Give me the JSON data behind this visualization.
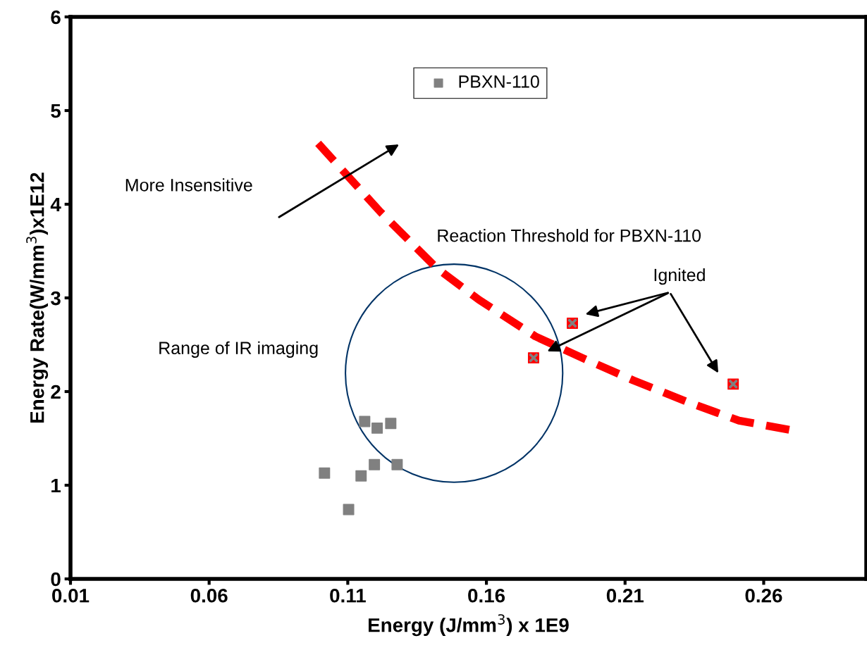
{
  "chart_data": {
    "type": "scatter",
    "xlabel": "Energy (J/mm$^{3}$) x 1E9",
    "ylabel": "Energy Rate(W/mm$^{3}$)x1E12",
    "xlim": [
      0.01,
      0.297
    ],
    "ylim": [
      0,
      6
    ],
    "xticks": [
      0.01,
      0.06,
      0.11,
      0.16,
      0.21,
      0.26
    ],
    "yticks": [
      0,
      1,
      2,
      3,
      4,
      5,
      6
    ],
    "grid": false,
    "legend": "top",
    "marker": "square",
    "series": [
      {
        "name": "PBXN-110",
        "color": "#808080",
        "x": [
          0.1016,
          0.1103,
          0.1148,
          0.1161,
          0.1196,
          0.1206,
          0.1255,
          0.1278
        ],
        "values": [
          1.13,
          0.74,
          1.1,
          1.68,
          1.22,
          1.61,
          1.66,
          1.22
        ]
      },
      {
        "color": "#ff0000",
        "x": [
          0.177,
          0.191,
          0.249
        ],
        "values": [
          2.36,
          2.73,
          2.08
        ]
      },
      {
        "type": "line",
        "color": "#ff0000",
        "line_style": "dashed",
        "marker": "none",
        "x": [
          0.0993,
          0.1217,
          0.142,
          0.1573,
          0.1776,
          0.1953,
          0.213,
          0.2333,
          0.2511,
          0.2714
        ],
        "values": [
          4.65,
          3.92,
          3.32,
          2.98,
          2.59,
          2.35,
          2.12,
          1.88,
          1.69,
          1.58
        ]
      }
    ],
    "annotations": [
      "More Insensitive",
      "Reaction Threshold for PBXN-110",
      "Ignited",
      "Range of IR imaging"
    ]
  }
}
